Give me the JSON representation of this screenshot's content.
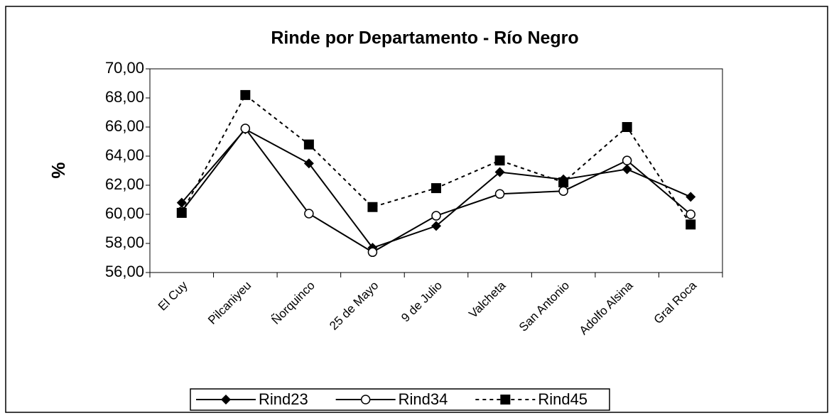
{
  "chart_data": {
    "type": "line",
    "title": "Rinde por Departamento - Río Negro",
    "y_label": "%",
    "categories": [
      "El Cuy",
      "Pilcaniyeu",
      "Ñorquinco",
      "25 de Mayo",
      "9 de Julio",
      "Valcheta",
      "San Antonio",
      "Adolfo Alsina",
      "Gral Roca"
    ],
    "series": [
      {
        "name": "Rind23",
        "color": "#000000",
        "marker": "diamond",
        "dashed": false,
        "values": [
          60.8,
          65.85,
          63.5,
          57.7,
          59.2,
          62.9,
          62.4,
          63.1,
          61.2
        ]
      },
      {
        "name": "Rind34",
        "color": "#000000",
        "marker": "circle",
        "dashed": false,
        "values": [
          60.2,
          65.9,
          60.05,
          57.4,
          59.9,
          61.4,
          61.6,
          63.7,
          60.0
        ]
      },
      {
        "name": "Rind45",
        "color": "#000000",
        "marker": "square",
        "dashed": true,
        "values": [
          60.1,
          68.2,
          64.8,
          60.5,
          61.8,
          63.7,
          62.2,
          66.0,
          59.3
        ]
      }
    ],
    "ylim": [
      56,
      70
    ],
    "yticks": [
      {
        "value": 56,
        "label": "56,00"
      },
      {
        "value": 58,
        "label": "58,00"
      },
      {
        "value": 60,
        "label": "60,00"
      },
      {
        "value": 62,
        "label": "62,00"
      },
      {
        "value": 64,
        "label": "64,00"
      },
      {
        "value": 66,
        "label": "66,00"
      },
      {
        "value": 68,
        "label": "68,00"
      },
      {
        "value": 70,
        "label": "70,00"
      }
    ],
    "legend": "bottom"
  }
}
